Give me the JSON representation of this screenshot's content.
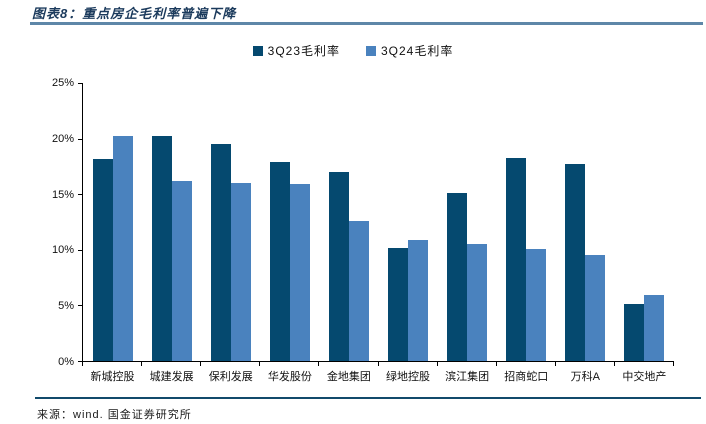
{
  "header": {
    "title": "图表8：重点房企毛利率普遍下降"
  },
  "chart_data": {
    "type": "bar",
    "title": "重点房企毛利率普遍下降",
    "categories": [
      "新城控股",
      "城建发展",
      "保利发展",
      "华发股份",
      "金地集团",
      "绿地控股",
      "滨江集团",
      "招商蛇口",
      "万科A",
      "中交地产"
    ],
    "series": [
      {
        "name": "3Q23毛利率",
        "color": "#05496f",
        "values": [
          18.2,
          20.2,
          19.5,
          17.9,
          17.0,
          10.2,
          15.1,
          18.3,
          17.7,
          5.1
        ]
      },
      {
        "name": "3Q24毛利率",
        "color": "#4a82be",
        "values": [
          20.2,
          16.2,
          16.0,
          15.9,
          12.6,
          10.9,
          10.5,
          10.1,
          9.5,
          5.9
        ]
      }
    ],
    "xlabel": "",
    "ylabel": "",
    "ylim": [
      0,
      25
    ],
    "yticks": [
      "0%",
      "5%",
      "10%",
      "15%",
      "20%",
      "25%"
    ],
    "unit": "%",
    "grid": false,
    "legend_position": "top"
  },
  "footer": {
    "source": "来源：wind. 国金证券研究所"
  },
  "colors": {
    "series_dark": "#05496f",
    "series_light": "#4a82be",
    "title_text": "#1b3a5c",
    "rule_top": "#5e87a8",
    "rule_bottom": "#114a6b",
    "axis": "#000000"
  }
}
